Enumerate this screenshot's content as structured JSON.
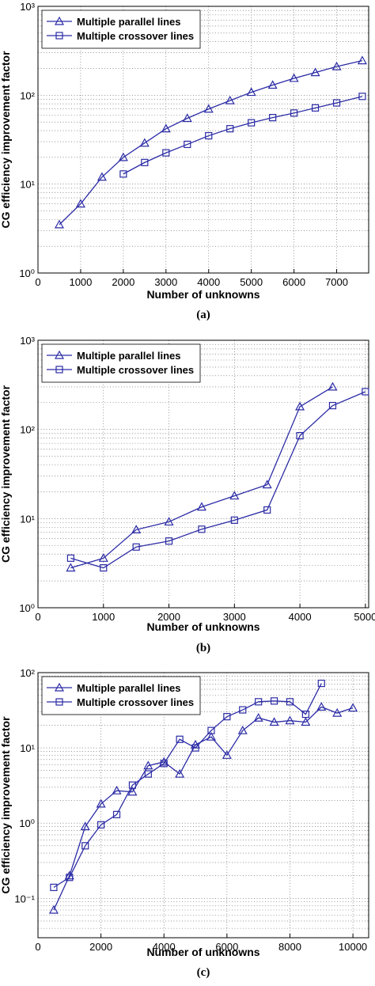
{
  "chart_data": [
    {
      "type": "line",
      "caption": "(a)",
      "x_label": "Number of unknowns",
      "y_label": "CG efficiency improvement factor",
      "yscale": "log",
      "grid": true,
      "legend": "upper left",
      "xlim": [
        0,
        7750
      ],
      "xticks": [
        0,
        1000,
        2000,
        3000,
        4000,
        5000,
        6000,
        7000
      ],
      "ylim": [
        1,
        1000
      ],
      "yticks": [
        {
          "value": 1,
          "label": "10⁰"
        },
        {
          "value": 10,
          "label": "10¹"
        },
        {
          "value": 100,
          "label": "10²"
        },
        {
          "value": 1000,
          "label": "10³"
        }
      ],
      "series": [
        {
          "name": "Multiple parallel lines",
          "color": "#2b2ba6",
          "marker": "triangle",
          "x": [
            500,
            1000,
            1500,
            2000,
            2500,
            3000,
            3500,
            4000,
            4500,
            5000,
            5500,
            6000,
            6500,
            7000,
            7600
          ],
          "values": [
            3.5,
            6,
            12,
            20,
            29,
            42,
            55,
            70,
            87,
            108,
            130,
            155,
            180,
            210,
            245
          ]
        },
        {
          "name": "Multiple crossover lines",
          "color": "#2b2ba6",
          "marker": "square",
          "x": [
            2000,
            2500,
            3000,
            3500,
            4000,
            4500,
            5000,
            5500,
            6000,
            6500,
            7000,
            7600
          ],
          "values": [
            13,
            17.5,
            22.5,
            28,
            35,
            42,
            49,
            56,
            63,
            72,
            82,
            97
          ]
        }
      ]
    },
    {
      "type": "line",
      "caption": "(b)",
      "x_label": "Number of unknowns",
      "y_label": "CG efficiency improvement factor",
      "yscale": "log",
      "grid": true,
      "legend": "upper left",
      "xlim": [
        0,
        5050
      ],
      "xticks": [
        0,
        1000,
        2000,
        3000,
        4000,
        5000
      ],
      "ylim": [
        1,
        1000
      ],
      "yticks": [
        {
          "value": 1,
          "label": "10⁰"
        },
        {
          "value": 10,
          "label": "10¹"
        },
        {
          "value": 100,
          "label": "10²"
        },
        {
          "value": 1000,
          "label": "10³"
        }
      ],
      "series": [
        {
          "name": "Multiple parallel lines",
          "color": "#2b2ba6",
          "marker": "triangle",
          "x": [
            500,
            1000,
            1500,
            2000,
            2500,
            3000,
            3500,
            4000,
            4500
          ],
          "values": [
            2.8,
            3.6,
            7.5,
            9.2,
            13.5,
            18,
            24,
            180,
            300
          ]
        },
        {
          "name": "Multiple crossover lines",
          "color": "#2b2ba6",
          "marker": "square",
          "x": [
            500,
            1000,
            1500,
            2000,
            2500,
            3000,
            3500,
            4000,
            4500,
            5000
          ],
          "values": [
            3.6,
            2.8,
            4.8,
            5.6,
            7.6,
            9.6,
            12.5,
            85,
            185,
            265
          ]
        }
      ]
    },
    {
      "type": "line",
      "caption": "(c)",
      "x_label": "Number of unknowns",
      "y_label": "CG efficiency improvement factor",
      "yscale": "log",
      "grid": true,
      "legend": "upper left",
      "xlim": [
        0,
        10500
      ],
      "xticks": [
        0,
        2000,
        4000,
        6000,
        8000,
        10000
      ],
      "ylim": [
        0.03,
        100
      ],
      "yticks": [
        {
          "value": 0.1,
          "label": "10⁻¹"
        },
        {
          "value": 1,
          "label": "10⁰"
        },
        {
          "value": 10,
          "label": "10¹"
        },
        {
          "value": 100,
          "label": "10²"
        }
      ],
      "series": [
        {
          "name": "Multiple parallel lines",
          "color": "#2b2ba6",
          "marker": "triangle",
          "x": [
            500,
            1000,
            1500,
            2000,
            2500,
            3000,
            3500,
            4000,
            4500,
            5000,
            5500,
            6000,
            6500,
            7000,
            7500,
            8000,
            8500,
            9000,
            9500,
            10000
          ],
          "values": [
            0.07,
            0.2,
            0.9,
            1.8,
            2.7,
            2.6,
            5.8,
            6.5,
            4.5,
            11,
            14,
            8,
            17,
            25,
            22,
            23,
            22,
            35,
            29,
            34
          ]
        },
        {
          "name": "Multiple crossover lines",
          "color": "#2b2ba6",
          "marker": "square",
          "x": [
            500,
            1000,
            1500,
            2000,
            2500,
            3000,
            3500,
            4000,
            4500,
            5000,
            5500,
            6000,
            6500,
            7000,
            7500,
            8000,
            8500,
            9000
          ],
          "values": [
            0.14,
            0.19,
            0.5,
            0.95,
            1.3,
            3.2,
            4.5,
            6.2,
            13,
            10,
            17,
            26,
            32,
            41,
            42,
            41,
            28,
            72
          ]
        }
      ]
    }
  ]
}
